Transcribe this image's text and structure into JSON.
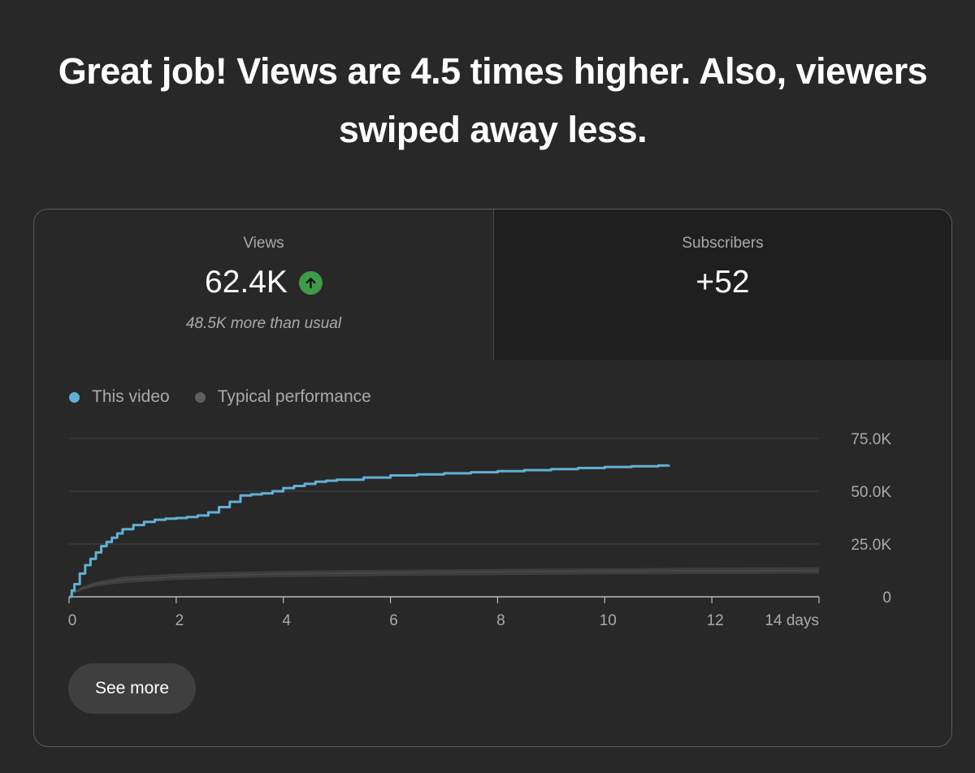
{
  "headline": "Great job! Views are 4.5 times higher. Also, viewers swiped away less.",
  "tabs": {
    "views": {
      "label": "Views",
      "value": "62.4K",
      "note": "48.5K more than usual",
      "trend_icon": "arrow-up-icon",
      "trend_color": "#3e9b48"
    },
    "subscribers": {
      "label": "Subscribers",
      "value": "+52"
    }
  },
  "legend": {
    "this_video": "This video",
    "typical": "Typical performance"
  },
  "colors": {
    "this_video": "#62b0d6",
    "typical": "#5f5f5f",
    "typical_band": "#3d3d3d",
    "background": "#282828"
  },
  "button": {
    "see_more": "See more"
  },
  "chart_data": {
    "type": "line",
    "xlim": [
      0,
      14
    ],
    "ylim": [
      0,
      75000
    ],
    "x_ticks": [
      "0",
      "2",
      "4",
      "6",
      "8",
      "10",
      "12",
      "14 days"
    ],
    "y_ticks": [
      "0",
      "25.0K",
      "50.0K",
      "75.0K"
    ],
    "y_axis_position": "right",
    "grid": true,
    "legend_position": "top-left",
    "series": [
      {
        "name": "This video",
        "x": [
          0,
          0.05,
          0.1,
          0.2,
          0.3,
          0.4,
          0.5,
          0.6,
          0.7,
          0.8,
          0.9,
          1.0,
          1.2,
          1.4,
          1.6,
          1.8,
          2.0,
          2.2,
          2.4,
          2.6,
          2.8,
          3.0,
          3.2,
          3.4,
          3.6,
          3.8,
          4.0,
          4.2,
          4.4,
          4.6,
          4.8,
          5.0,
          5.5,
          6.0,
          6.5,
          7.0,
          7.5,
          8.0,
          8.5,
          9.0,
          9.5,
          10.0,
          10.5,
          11.0,
          11.2
        ],
        "values": [
          0,
          3000,
          6000,
          11000,
          15000,
          18000,
          21000,
          24000,
          26000,
          28000,
          30000,
          32000,
          34000,
          35500,
          36500,
          37000,
          37300,
          37800,
          38500,
          40000,
          42500,
          45000,
          48000,
          48500,
          49000,
          50000,
          51500,
          52500,
          53500,
          54500,
          55000,
          55500,
          56500,
          57500,
          58000,
          58500,
          59000,
          59500,
          60000,
          60500,
          61000,
          61500,
          61800,
          62200,
          62400
        ]
      },
      {
        "name": "Typical performance",
        "x": [
          0,
          0.1,
          0.25,
          0.5,
          1,
          2,
          3,
          4,
          6,
          8,
          10,
          12,
          14
        ],
        "values": [
          0,
          2200,
          4000,
          6000,
          8000,
          9500,
          10300,
          10800,
          11400,
          11800,
          12100,
          12300,
          12500
        ],
        "band_high": [
          0,
          2700,
          4800,
          7200,
          9500,
          11000,
          11800,
          12300,
          12800,
          13200,
          13500,
          13800,
          14000
        ],
        "band_low": [
          0,
          1700,
          3200,
          4800,
          6500,
          8000,
          8800,
          9300,
          9900,
          10300,
          10600,
          10800,
          11000
        ]
      }
    ]
  }
}
